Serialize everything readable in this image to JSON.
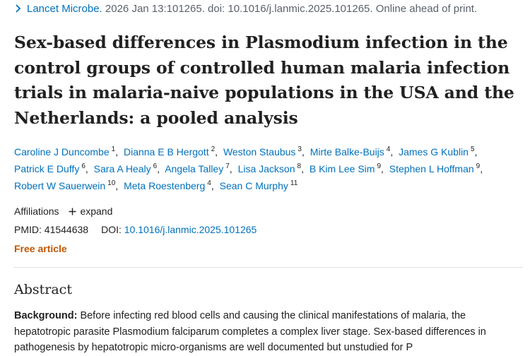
{
  "citation": {
    "journal": "Lancet Microbe.",
    "details": "2026 Jan 13:101265. doi: 10.1016/j.lanmic.2025.101265. Online ahead of print."
  },
  "title": "Sex-based differences in Plasmodium infection in the control groups of controlled human malaria infection trials in malaria-naive populations in the USA and the Netherlands: a pooled analysis",
  "authors": [
    {
      "name": "Caroline J Duncombe",
      "aff": "1"
    },
    {
      "name": "Dianna E B Hergott",
      "aff": "2"
    },
    {
      "name": "Weston Staubus",
      "aff": "3"
    },
    {
      "name": "Mirte Balke-Buijs",
      "aff": "4"
    },
    {
      "name": "James G Kublin",
      "aff": "5"
    },
    {
      "name": "Patrick E Duffy",
      "aff": "6"
    },
    {
      "name": "Sara A Healy",
      "aff": "6"
    },
    {
      "name": "Angela Talley",
      "aff": "7"
    },
    {
      "name": "Lisa Jackson",
      "aff": "8"
    },
    {
      "name": "B Kim Lee Sim",
      "aff": "9"
    },
    {
      "name": "Stephen L Hoffman",
      "aff": "9"
    },
    {
      "name": "Robert W Sauerwein",
      "aff": "10"
    },
    {
      "name": "Meta Roestenberg",
      "aff": "4"
    },
    {
      "name": "Sean C Murphy",
      "aff": "11"
    }
  ],
  "affiliations": {
    "label": "Affiliations",
    "expand_label": "expand"
  },
  "ids": {
    "pmid_label": "PMID:",
    "pmid": "41544638",
    "doi_label": "DOI:",
    "doi": "10.1016/j.lanmic.2025.101265"
  },
  "free_article": "Free article",
  "abstract": {
    "heading": "Abstract",
    "background_label": "Background:",
    "background_text": " Before infecting red blood cells and causing the clinical manifestations of malaria, the hepatotropic parasite Plasmodium falciparum completes a complex liver stage. Sex-based differences in pathogenesis by hepatotropic micro-organisms are well documented but unstudied for P"
  },
  "colors": {
    "link": "#0071bc",
    "free": "#c05600",
    "text": "#212121",
    "muted": "#5b616b"
  }
}
